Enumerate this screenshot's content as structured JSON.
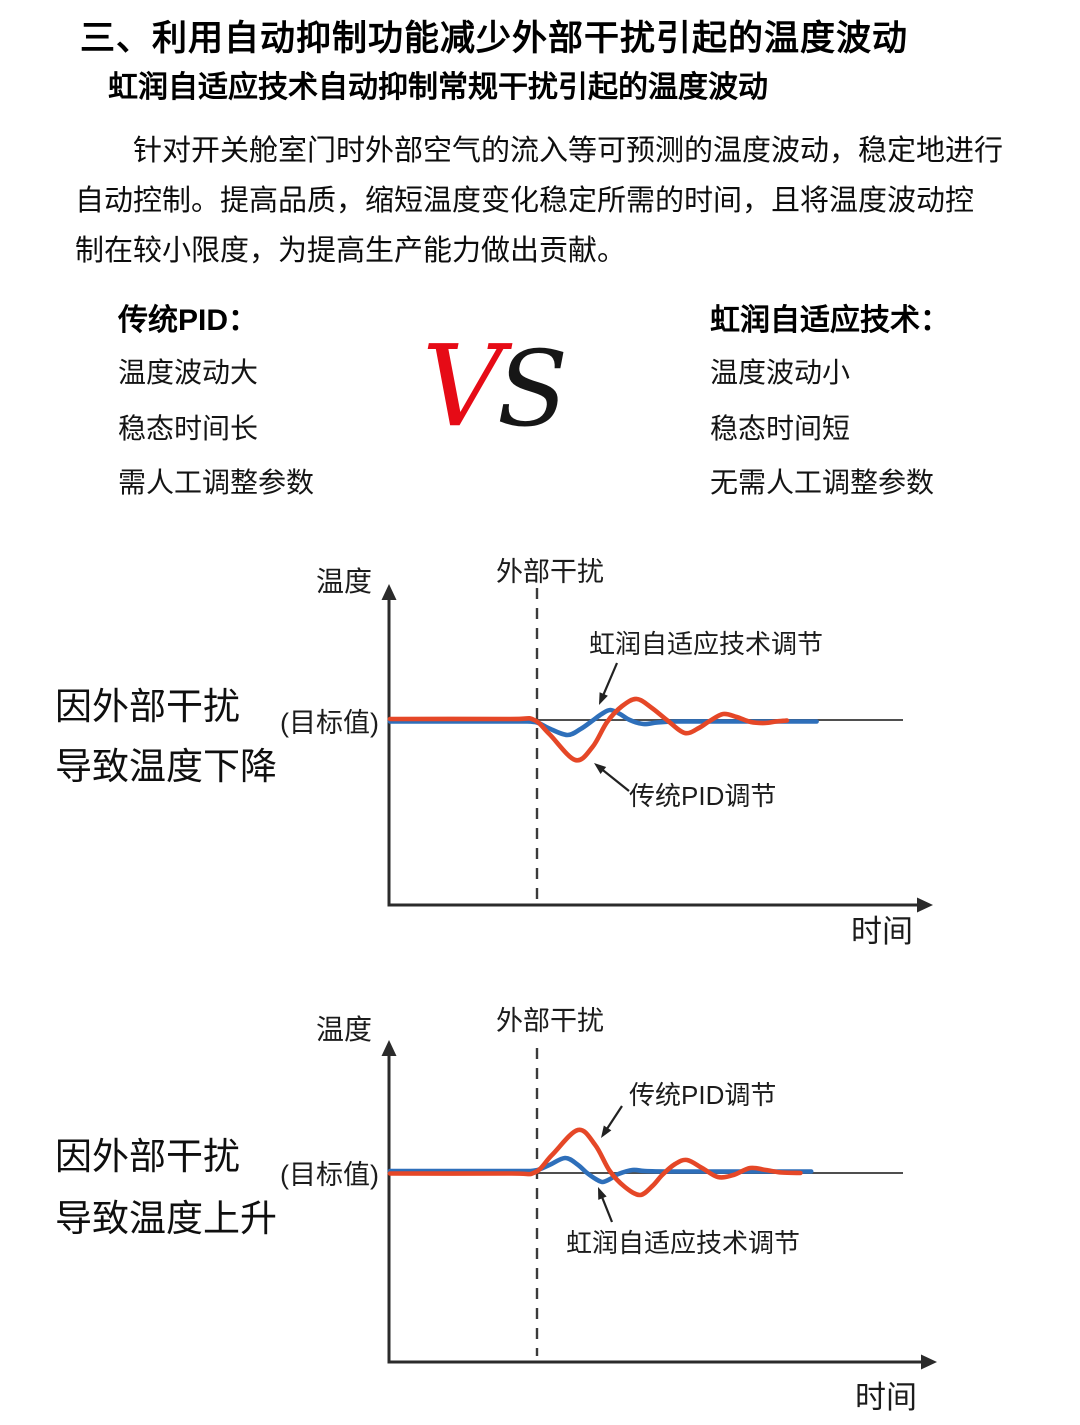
{
  "page": {
    "title": "三、利用自动抑制功能减少外部干扰引起的温度波动",
    "subtitle": "虹润自适应技术自动抑制常规干扰引起的温度波动",
    "paragraph_lines": [
      "针对开关舱室门时外部空气的流入等可预测的温度波动，稳定地进行",
      "自动控制。提高品质，缩短温度变化稳定所需的时间，且将温度波动控",
      "制在较小限度，为提高生产能力做出贡献。"
    ]
  },
  "comparison": {
    "left": {
      "heading": "传统PID：",
      "items": [
        "温度波动大",
        "稳态时间长",
        "需人工调整参数"
      ]
    },
    "vs": {
      "v": "V",
      "s": "S",
      "v_color": "#e60b16",
      "s_color": "#161616"
    },
    "right": {
      "heading": "虹润自适应技术：",
      "items": [
        "温度波动小",
        "稳态时间短",
        "无需人工调整参数"
      ]
    }
  },
  "colors": {
    "pid_red": "#e54727",
    "adaptive_blue": "#2e6fba",
    "axis": "#2b2b2b",
    "baseline_gray": "#4f4f4f",
    "dash_gray": "#3a3a3a",
    "annotation_arrow": "#222222"
  },
  "chart_data": [
    {
      "type": "line",
      "side_caption": [
        "因外部干扰",
        "导致温度下降"
      ],
      "ylabel": "温度",
      "xlabel": "时间",
      "target_label": "(目标值)",
      "disturbance_label": "外部干扰",
      "x_range": [
        0,
        100
      ],
      "disturbance_t": 27.2,
      "baseline_value": 0,
      "grid": false,
      "series": [
        {
          "name": "传统PID调节",
          "color": "#e54727",
          "points": [
            [
              0,
              1
            ],
            [
              22,
              1
            ],
            [
              26.5,
              0.5
            ],
            [
              29.5,
              -14
            ],
            [
              34.3,
              -40
            ],
            [
              37.5,
              -27
            ],
            [
              40.2,
              -2
            ],
            [
              43,
              14
            ],
            [
              45.7,
              21
            ],
            [
              48.5,
              12
            ],
            [
              51.5,
              -1
            ],
            [
              54.6,
              -13
            ],
            [
              57.2,
              -8
            ],
            [
              59.2,
              -1
            ],
            [
              61.7,
              6
            ],
            [
              64.2,
              3
            ],
            [
              66.8,
              -2
            ],
            [
              69.5,
              -3
            ],
            [
              71.5,
              -1.5
            ],
            [
              73.5,
              -0.5
            ]
          ]
        },
        {
          "name": "虹润自适应技术调节",
          "color": "#2e6fba",
          "points": [
            [
              0,
              -1.5
            ],
            [
              22,
              -1.5
            ],
            [
              26.8,
              -2
            ],
            [
              29.3,
              -8
            ],
            [
              32.8,
              -15
            ],
            [
              35.3,
              -9
            ],
            [
              37.4,
              -1
            ],
            [
              39.2,
              6
            ],
            [
              40.8,
              10
            ],
            [
              42.6,
              6
            ],
            [
              44.4,
              0
            ],
            [
              46.9,
              -4
            ],
            [
              49.5,
              -2.5
            ],
            [
              53,
              -1.5
            ],
            [
              62,
              -1.5
            ],
            [
              79,
              -1.5
            ]
          ]
        }
      ]
    },
    {
      "type": "line",
      "side_caption": [
        "因外部干扰",
        "导致温度上升"
      ],
      "ylabel": "温度",
      "xlabel": "时间",
      "target_label": "(目标值)",
      "disturbance_label": "外部干扰",
      "x_range": [
        0,
        100
      ],
      "disturbance_t": 27.2,
      "baseline_value": 0,
      "grid": false,
      "series": [
        {
          "name": "传统PID调节",
          "color": "#e54727",
          "points": [
            [
              0,
              -0.5
            ],
            [
              22,
              -0.5
            ],
            [
              26.8,
              0.5
            ],
            [
              30,
              18
            ],
            [
              34.8,
              43
            ],
            [
              38,
              28
            ],
            [
              40.7,
              2
            ],
            [
              43.5,
              -14
            ],
            [
              46.3,
              -22
            ],
            [
              48.6,
              -13
            ],
            [
              50.4,
              -2
            ],
            [
              52.8,
              9
            ],
            [
              55,
              13
            ],
            [
              57.8,
              5
            ],
            [
              60.7,
              -4
            ],
            [
              63.6,
              -2
            ],
            [
              66.7,
              5
            ],
            [
              69.6,
              3
            ],
            [
              72.5,
              0.5
            ],
            [
              76,
              0
            ]
          ]
        },
        {
          "name": "虹润自适应技术调节",
          "color": "#2e6fba",
          "points": [
            [
              0,
              2
            ],
            [
              22,
              2
            ],
            [
              26.8,
              2.5
            ],
            [
              29.5,
              8
            ],
            [
              32.4,
              15
            ],
            [
              34.6,
              9
            ],
            [
              36.5,
              0
            ],
            [
              38.1,
              -6
            ],
            [
              39.4,
              -9
            ],
            [
              41.1,
              -5
            ],
            [
              42.3,
              -1
            ],
            [
              44.9,
              3
            ],
            [
              47.2,
              2
            ],
            [
              52,
              1.5
            ],
            [
              64,
              1.5
            ],
            [
              78,
              1.5
            ]
          ]
        }
      ]
    }
  ]
}
